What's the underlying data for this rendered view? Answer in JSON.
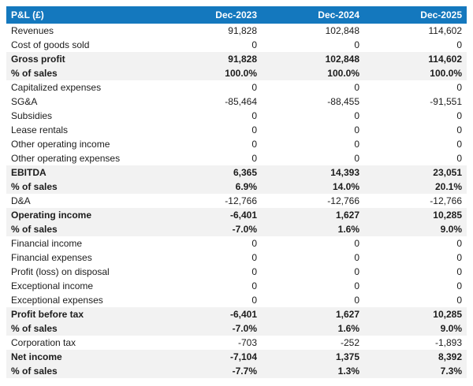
{
  "title": "P&L statement table",
  "colors": {
    "header_bg": "#1478be",
    "header_text": "#ffffff",
    "emphasis_row_bg": "#f2f2f2",
    "body_text": "#1c1c1c",
    "page_bg": "#ffffff"
  },
  "table": {
    "header": {
      "label": "P&L (£)",
      "columns": [
        "Dec-2023",
        "Dec-2024",
        "Dec-2025"
      ]
    },
    "rows": [
      {
        "label": "Revenues",
        "values": [
          "91,828",
          "102,848",
          "114,602"
        ],
        "emphasis": false
      },
      {
        "label": "Cost of goods sold",
        "values": [
          "0",
          "0",
          "0"
        ],
        "emphasis": false
      },
      {
        "label": "Gross profit",
        "values": [
          "91,828",
          "102,848",
          "114,602"
        ],
        "emphasis": true
      },
      {
        "label": "% of sales",
        "values": [
          "100.0%",
          "100.0%",
          "100.0%"
        ],
        "emphasis": true
      },
      {
        "label": "Capitalized expenses",
        "values": [
          "0",
          "0",
          "0"
        ],
        "emphasis": false
      },
      {
        "label": "SG&A",
        "values": [
          "-85,464",
          "-88,455",
          "-91,551"
        ],
        "emphasis": false
      },
      {
        "label": "Subsidies",
        "values": [
          "0",
          "0",
          "0"
        ],
        "emphasis": false
      },
      {
        "label": "Lease rentals",
        "values": [
          "0",
          "0",
          "0"
        ],
        "emphasis": false
      },
      {
        "label": "Other operating income",
        "values": [
          "0",
          "0",
          "0"
        ],
        "emphasis": false
      },
      {
        "label": "Other operating expenses",
        "values": [
          "0",
          "0",
          "0"
        ],
        "emphasis": false
      },
      {
        "label": "EBITDA",
        "values": [
          "6,365",
          "14,393",
          "23,051"
        ],
        "emphasis": true
      },
      {
        "label": "% of sales",
        "values": [
          "6.9%",
          "14.0%",
          "20.1%"
        ],
        "emphasis": true
      },
      {
        "label": "D&A",
        "values": [
          "-12,766",
          "-12,766",
          "-12,766"
        ],
        "emphasis": false
      },
      {
        "label": "Operating income",
        "values": [
          "-6,401",
          "1,627",
          "10,285"
        ],
        "emphasis": true
      },
      {
        "label": "% of sales",
        "values": [
          "-7.0%",
          "1.6%",
          "9.0%"
        ],
        "emphasis": true
      },
      {
        "label": "Financial income",
        "values": [
          "0",
          "0",
          "0"
        ],
        "emphasis": false
      },
      {
        "label": "Financial expenses",
        "values": [
          "0",
          "0",
          "0"
        ],
        "emphasis": false
      },
      {
        "label": "Profit (loss) on disposal",
        "values": [
          "0",
          "0",
          "0"
        ],
        "emphasis": false
      },
      {
        "label": "Exceptional income",
        "values": [
          "0",
          "0",
          "0"
        ],
        "emphasis": false
      },
      {
        "label": "Exceptional expenses",
        "values": [
          "0",
          "0",
          "0"
        ],
        "emphasis": false
      },
      {
        "label": "Profit before tax",
        "values": [
          "-6,401",
          "1,627",
          "10,285"
        ],
        "emphasis": true
      },
      {
        "label": "% of sales",
        "values": [
          "-7.0%",
          "1.6%",
          "9.0%"
        ],
        "emphasis": true
      },
      {
        "label": "Corporation tax",
        "values": [
          "-703",
          "-252",
          "-1,893"
        ],
        "emphasis": false
      },
      {
        "label": "Net income",
        "values": [
          "-7,104",
          "1,375",
          "8,392"
        ],
        "emphasis": true
      },
      {
        "label": "% of sales",
        "values": [
          "-7.7%",
          "1.3%",
          "7.3%"
        ],
        "emphasis": true
      }
    ]
  },
  "chart_data": {
    "type": "table",
    "title": "P&L (£)",
    "columns": [
      "P&L (£)",
      "Dec-2023",
      "Dec-2024",
      "Dec-2025"
    ],
    "rows": [
      [
        "Revenues",
        91828,
        102848,
        114602
      ],
      [
        "Cost of goods sold",
        0,
        0,
        0
      ],
      [
        "Gross profit",
        91828,
        102848,
        114602
      ],
      [
        "% of sales",
        "100.0%",
        "100.0%",
        "100.0%"
      ],
      [
        "Capitalized expenses",
        0,
        0,
        0
      ],
      [
        "SG&A",
        -85464,
        -88455,
        -91551
      ],
      [
        "Subsidies",
        0,
        0,
        0
      ],
      [
        "Lease rentals",
        0,
        0,
        0
      ],
      [
        "Other operating income",
        0,
        0,
        0
      ],
      [
        "Other operating expenses",
        0,
        0,
        0
      ],
      [
        "EBITDA",
        6365,
        14393,
        23051
      ],
      [
        "% of sales",
        "6.9%",
        "14.0%",
        "20.1%"
      ],
      [
        "D&A",
        -12766,
        -12766,
        -12766
      ],
      [
        "Operating income",
        -6401,
        1627,
        10285
      ],
      [
        "% of sales",
        "-7.0%",
        "1.6%",
        "9.0%"
      ],
      [
        "Financial income",
        0,
        0,
        0
      ],
      [
        "Financial expenses",
        0,
        0,
        0
      ],
      [
        "Profit (loss) on disposal",
        0,
        0,
        0
      ],
      [
        "Exceptional income",
        0,
        0,
        0
      ],
      [
        "Exceptional expenses",
        0,
        0,
        0
      ],
      [
        "Profit before tax",
        -6401,
        1627,
        10285
      ],
      [
        "% of sales",
        "-7.0%",
        "1.6%",
        "9.0%"
      ],
      [
        "Corporation tax",
        -703,
        -252,
        -1893
      ],
      [
        "Net income",
        -7104,
        1375,
        8392
      ],
      [
        "% of sales",
        "-7.7%",
        "1.3%",
        "7.3%"
      ]
    ]
  }
}
